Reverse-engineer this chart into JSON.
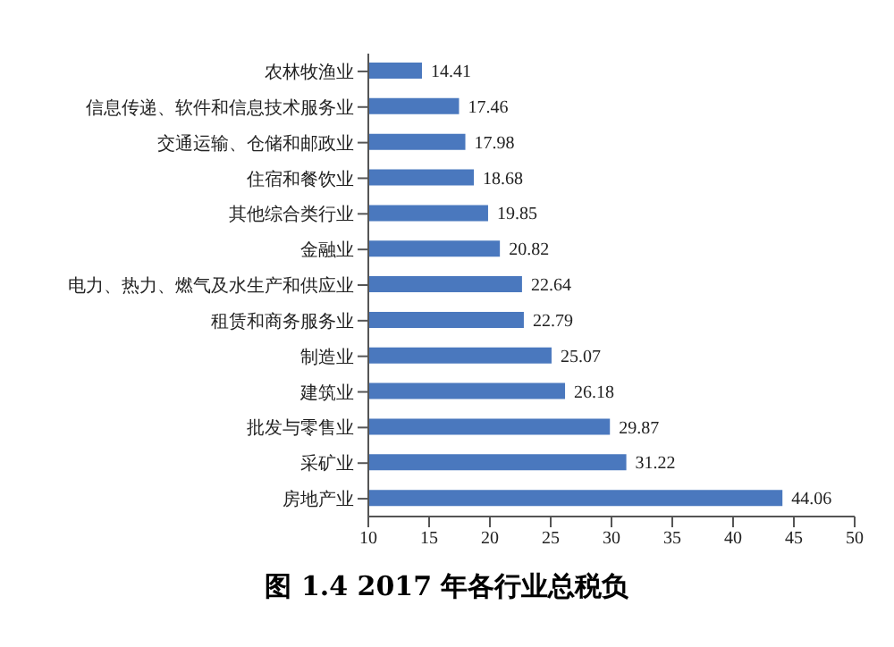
{
  "chart_data": {
    "type": "bar",
    "orientation": "horizontal",
    "title": "图 1.4 2017 年各行业总税负",
    "categories": [
      "农林牧渔业",
      "信息传递、软件和信息技术服务业",
      "交通运输、仓储和邮政业",
      "住宿和餐饮业",
      "其他综合类行业",
      "金融业",
      "电力、热力、燃气及水生产和供应业",
      "租赁和商务服务业",
      "制造业",
      "建筑业",
      "批发与零售业",
      "采矿业",
      "房地产业"
    ],
    "values": [
      14.41,
      17.46,
      17.98,
      18.68,
      19.85,
      20.82,
      22.64,
      22.79,
      25.07,
      26.18,
      29.87,
      31.22,
      44.06
    ],
    "color": "#4a78be",
    "xlim": [
      10,
      50
    ],
    "xticks": [
      10,
      15,
      20,
      25,
      30,
      35,
      40,
      45,
      50
    ],
    "data_labels": true,
    "grid": false,
    "legend": false
  }
}
